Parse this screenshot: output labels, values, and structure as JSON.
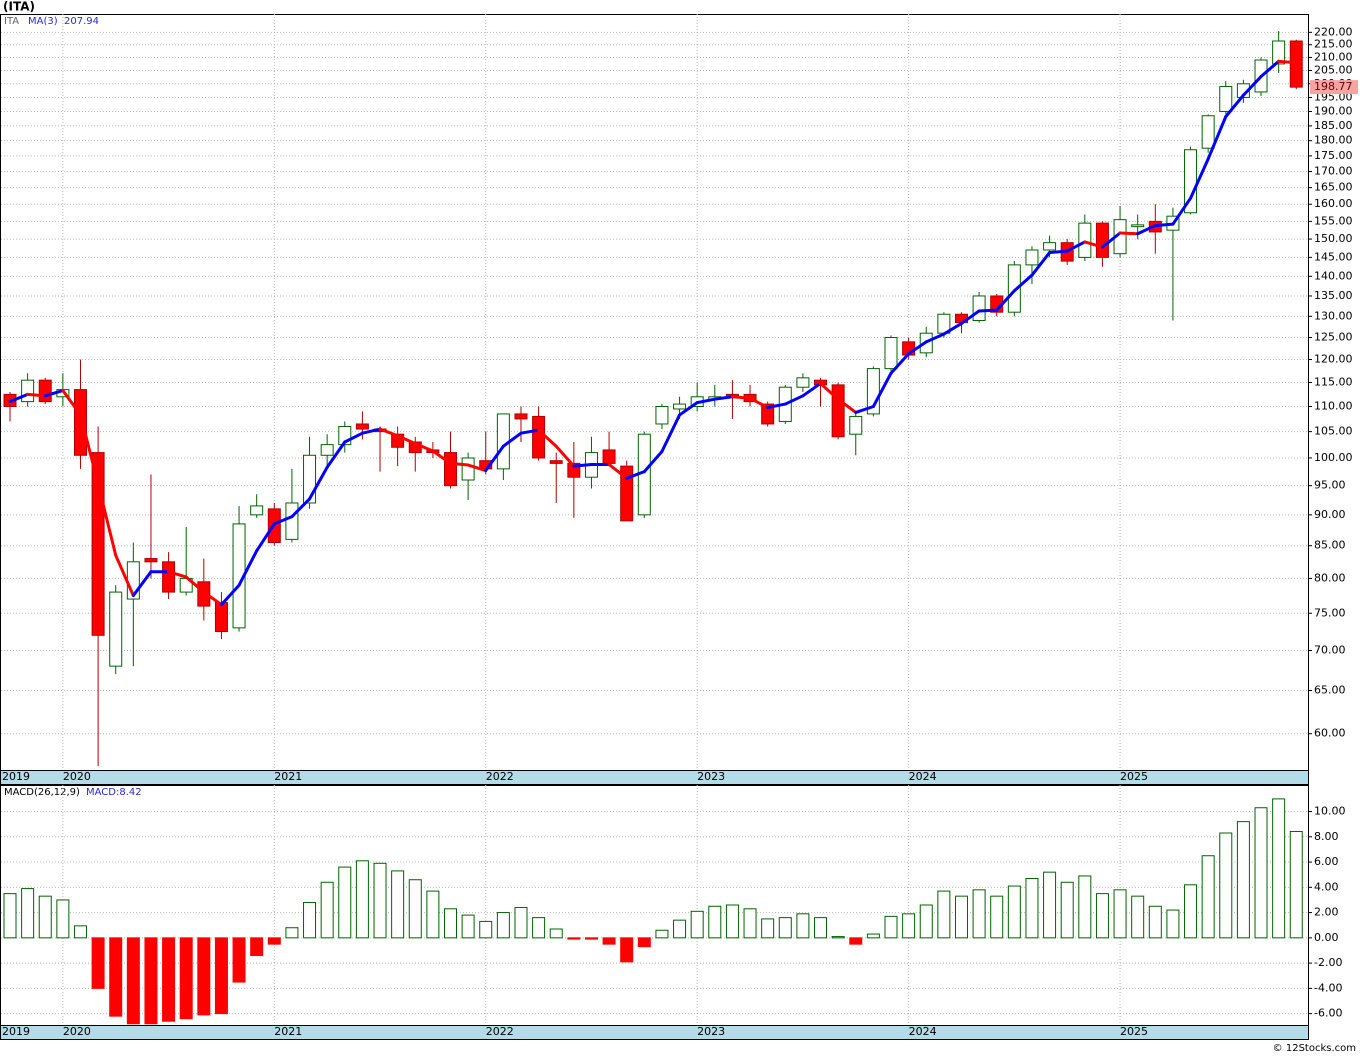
{
  "chart_data": [
    {
      "type": "candlestick",
      "title": "(ITA)",
      "symbol": "ITA",
      "log_scale": true,
      "grid": true,
      "categories": [
        "2019",
        null,
        null,
        "2020",
        null,
        null,
        null,
        null,
        null,
        null,
        null,
        null,
        null,
        null,
        null,
        "2021",
        null,
        null,
        null,
        null,
        null,
        null,
        null,
        null,
        null,
        null,
        null,
        "2022",
        null,
        null,
        null,
        null,
        null,
        null,
        null,
        null,
        null,
        null,
        null,
        "2023",
        null,
        null,
        null,
        null,
        null,
        null,
        null,
        null,
        null,
        null,
        null,
        "2024",
        null,
        null,
        null,
        null,
        null,
        null,
        null,
        null,
        null,
        null,
        null,
        "2025",
        null,
        null,
        null,
        null,
        null,
        null,
        null,
        null,
        null,
        null
      ],
      "open": [
        112.5,
        111,
        115.5,
        112,
        113.5,
        101,
        68,
        77,
        83,
        82.5,
        78,
        79.5,
        76.5,
        73,
        90,
        91,
        86,
        92,
        100.5,
        102.5,
        106.5,
        105.5,
        104.5,
        103,
        101.5,
        101,
        96,
        99.5,
        98,
        108.5,
        108,
        99.5,
        99,
        96.5,
        101.5,
        98.5,
        90,
        106.5,
        109.5,
        110,
        111.5,
        112.5,
        112.5,
        110.5,
        107,
        114,
        115.5,
        114.5,
        104.5,
        108.5,
        118,
        124,
        121.5,
        126,
        130.5,
        129,
        135,
        131,
        143,
        147,
        149,
        145,
        154.5,
        146,
        153.5,
        155,
        152.5,
        157.5,
        177.5,
        190,
        195,
        197,
        207.5,
        216.5
      ],
      "high": [
        113,
        117,
        116,
        117,
        120,
        106,
        79,
        85.5,
        97,
        84,
        88,
        83,
        78,
        91.5,
        93.5,
        92,
        98,
        104,
        104.5,
        107,
        109,
        106,
        106,
        104,
        103,
        105,
        101,
        105,
        108.5,
        110,
        110,
        101,
        103,
        104,
        105,
        99.5,
        105,
        110.5,
        112,
        115,
        114.5,
        115.5,
        114.5,
        111,
        114.5,
        117,
        116,
        115,
        108.5,
        118.5,
        125.5,
        125,
        127.5,
        131,
        131,
        136,
        135.5,
        144,
        148,
        151,
        150,
        157,
        155,
        159.5,
        157,
        160,
        159,
        178,
        189,
        201,
        201.5,
        210,
        220.5,
        217
      ],
      "low": [
        107,
        110,
        110.5,
        110,
        98,
        56.5,
        67,
        68,
        80,
        77,
        77.5,
        74,
        71.5,
        72.5,
        89.5,
        85,
        85.5,
        91,
        98.5,
        101,
        103.5,
        97.5,
        98.5,
        97.5,
        100,
        94.5,
        92.5,
        97,
        96,
        103,
        99.5,
        92,
        89.5,
        94.5,
        98.5,
        89,
        89.5,
        105.5,
        107.5,
        109,
        110,
        107.5,
        110,
        106,
        106.5,
        113,
        110,
        103.5,
        100.5,
        108,
        117.5,
        120,
        120.5,
        125,
        126,
        128.5,
        130,
        130,
        138,
        145,
        143,
        144,
        142.5,
        145,
        150,
        146,
        129,
        157,
        176,
        189,
        193,
        195.5,
        204,
        198
      ],
      "close": [
        110,
        115.5,
        111,
        113.5,
        100.5,
        72,
        78,
        82.5,
        82.5,
        78,
        80,
        76,
        72.5,
        88.5,
        91.5,
        85.5,
        92,
        100.5,
        102.5,
        106,
        105.5,
        105,
        102,
        101,
        101,
        95,
        100,
        98,
        108.5,
        107.5,
        100,
        99,
        96.5,
        101,
        99,
        89,
        104.5,
        110,
        110.5,
        112,
        112,
        112,
        111,
        106.5,
        114,
        116,
        114.5,
        104,
        108,
        118,
        125,
        121,
        126,
        130.5,
        128.5,
        135,
        131,
        143,
        147,
        149,
        144,
        154.5,
        145,
        155.5,
        154,
        152,
        156.5,
        177,
        188.5,
        199,
        200,
        209,
        216.5,
        198.77
      ],
      "up_color": "#ffffff",
      "up_edge": "#006400",
      "down_color": "#ff0000",
      "down_edge": "#b00000",
      "ma": {
        "name": "MA(3)",
        "rise_color": "#0000ff",
        "fall_color": "#ff0000",
        "values": [
          111,
          112.5,
          112.2,
          113.3,
          108.3,
          95.3,
          83.5,
          77.5,
          81,
          81,
          80.2,
          78,
          76.2,
          79,
          84.2,
          88.5,
          89.7,
          92.7,
          98.3,
          103,
          104.7,
          105.5,
          104.2,
          102.7,
          101.3,
          99,
          98.7,
          97.7,
          102.2,
          104.7,
          105.3,
          102.2,
          98.5,
          98.8,
          98.8,
          96.3,
          97.5,
          101.2,
          108.3,
          110.8,
          111.5,
          112,
          111.7,
          109.8,
          110.5,
          112.2,
          114.8,
          111.5,
          108.8,
          110,
          117,
          121.3,
          124,
          125.8,
          128.3,
          131.3,
          131.5,
          136.3,
          140.3,
          146.3,
          146.7,
          149.2,
          147.8,
          151.7,
          151.5,
          153.8,
          154.2,
          161.8,
          174,
          188.2,
          195.8,
          202.7,
          208.5,
          207.94
        ]
      },
      "last_price_color": "#f5a3a3",
      "ylim": [
        56.1,
        227.6
      ],
      "yticks": [
        {
          "value": 60,
          "label": "60.00"
        },
        {
          "value": 65,
          "label": "65.00"
        },
        {
          "value": 70,
          "label": "70.00"
        },
        {
          "value": 75,
          "label": "75.00"
        },
        {
          "value": 80,
          "label": "80.00"
        },
        {
          "value": 85,
          "label": "85.00"
        },
        {
          "value": 90,
          "label": "90.00"
        },
        {
          "value": 95,
          "label": "95.00"
        },
        {
          "value": 100,
          "label": "100.00"
        },
        {
          "value": 105,
          "label": "105.00"
        },
        {
          "value": 110,
          "label": "110.00"
        },
        {
          "value": 115,
          "label": "115.00"
        },
        {
          "value": 120,
          "label": "120.00"
        },
        {
          "value": 125,
          "label": "125.00"
        },
        {
          "value": 130,
          "label": "130.00"
        },
        {
          "value": 135,
          "label": "135.00"
        },
        {
          "value": 140,
          "label": "140.00"
        },
        {
          "value": 145,
          "label": "145.00"
        },
        {
          "value": 150,
          "label": "150.00"
        },
        {
          "value": 155,
          "label": "155.00"
        },
        {
          "value": 160,
          "label": "160.00"
        },
        {
          "value": 165,
          "label": "165.00"
        },
        {
          "value": 170,
          "label": "170.00"
        },
        {
          "value": 175,
          "label": "175.00"
        },
        {
          "value": 180,
          "label": "180.00"
        },
        {
          "value": 185,
          "label": "185.00"
        },
        {
          "value": 190,
          "label": "190.00"
        },
        {
          "value": 195,
          "label": "195.00"
        },
        {
          "value": 200,
          "label": "200.00"
        },
        {
          "value": 205,
          "label": "205.00"
        },
        {
          "value": 210,
          "label": "210.00"
        },
        {
          "value": 215,
          "label": "215.00"
        },
        {
          "value": 220,
          "label": "220.00"
        }
      ]
    },
    {
      "type": "histogram",
      "title": "MACD(26,12,9)",
      "last_label": "MACD:8.42",
      "values": [
        3.5,
        3.9,
        3.3,
        3.0,
        0.95,
        -4.0,
        -6.2,
        -6.8,
        -6.8,
        -6.6,
        -6.4,
        -6.1,
        -6.0,
        -3.5,
        -1.4,
        -0.5,
        0.8,
        2.8,
        4.4,
        5.6,
        6.1,
        5.9,
        5.3,
        4.6,
        3.7,
        2.3,
        1.8,
        1.3,
        2.0,
        2.4,
        1.6,
        0.7,
        -0.1,
        -0.1,
        -0.5,
        -1.9,
        -0.7,
        0.6,
        1.4,
        2.1,
        2.5,
        2.6,
        2.3,
        1.5,
        1.6,
        1.9,
        1.6,
        0.1,
        -0.5,
        0.3,
        1.7,
        1.9,
        2.6,
        3.7,
        3.3,
        3.8,
        3.3,
        4.1,
        4.7,
        5.2,
        4.4,
        4.9,
        3.5,
        3.8,
        3.3,
        2.5,
        2.2,
        4.2,
        6.5,
        8.3,
        9.2,
        10.3,
        11.0,
        8.42
      ],
      "pos_color": "#ffffff",
      "pos_edge": "#006400",
      "neg_color": "#ff0000",
      "ylim": [
        -6.9,
        12.1
      ],
      "yticks": [
        {
          "value": -6,
          "label": "-6.00"
        },
        {
          "value": -4,
          "label": "-4.00"
        },
        {
          "value": -2,
          "label": "-2.00"
        },
        {
          "value": 0,
          "label": "0.00"
        },
        {
          "value": 2,
          "label": "2.00"
        },
        {
          "value": 4,
          "label": "4.00"
        },
        {
          "value": 6,
          "label": "6.00"
        },
        {
          "value": 8,
          "label": "8.00"
        },
        {
          "value": 10,
          "label": "10.00"
        }
      ]
    }
  ],
  "footer": "© 12Stocks.com"
}
